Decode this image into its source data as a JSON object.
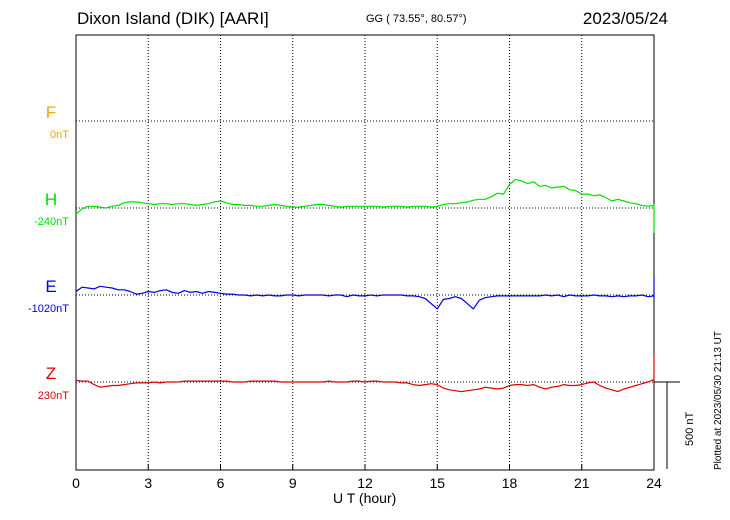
{
  "header": {
    "station": "Dixon Island (DIK)  [AARI]",
    "coords": "GG ( 73.55°,  80.57°)",
    "date": "2023/05/24"
  },
  "footnote": "Plotted at 2023/05/30 21:13 UT",
  "scale_bar_label": "500 nT",
  "colors": {
    "F": "#f0a800",
    "H": "#00e000",
    "E": "#0000e0",
    "Z": "#e00000"
  },
  "chart_data": {
    "type": "line",
    "xlabel": "U T (hour)",
    "xlim": [
      0,
      24
    ],
    "xticks": [
      0,
      3,
      6,
      9,
      12,
      15,
      18,
      21,
      24
    ],
    "x_step_hours": 0.25,
    "panels": [
      {
        "component": "F",
        "baseline": "0nT",
        "values": []
      },
      {
        "component": "H",
        "baseline": "-240nT",
        "values": [
          -35,
          -5,
          10,
          10,
          5,
          0,
          10,
          15,
          30,
          35,
          35,
          30,
          25,
          20,
          25,
          25,
          20,
          25,
          25,
          20,
          15,
          20,
          25,
          35,
          40,
          30,
          20,
          20,
          15,
          15,
          10,
          10,
          15,
          20,
          15,
          10,
          5,
          5,
          10,
          15,
          20,
          20,
          15,
          10,
          5,
          10,
          10,
          10,
          10,
          10,
          10,
          5,
          10,
          10,
          10,
          5,
          10,
          10,
          10,
          5,
          10,
          20,
          25,
          25,
          30,
          35,
          45,
          50,
          50,
          65,
          85,
          80,
          135,
          165,
          155,
          140,
          150,
          125,
          130,
          115,
          120,
          125,
          105,
          100,
          80,
          80,
          70,
          75,
          60,
          40,
          50,
          40,
          30,
          25,
          15,
          10,
          15,
          10,
          20,
          15,
          10,
          5,
          0,
          -10,
          -40,
          -55,
          -45,
          -50,
          -45,
          -60,
          -65,
          -55,
          -45,
          -40,
          -50,
          -60,
          -35,
          -20,
          -15,
          -90,
          -140,
          -130,
          -120,
          -100,
          -80,
          -60,
          -60,
          -50,
          -70,
          -60,
          -40,
          -30,
          -25,
          -50,
          -60,
          -55,
          -55,
          -60,
          -50,
          -50,
          -55,
          -50,
          -50,
          -45,
          -30,
          -20,
          -40,
          -70,
          -50,
          -40,
          -30,
          -20,
          -5
        ]
      },
      {
        "component": "E",
        "baseline": "-1020nT",
        "values": [
          20,
          45,
          40,
          35,
          50,
          45,
          40,
          30,
          30,
          20,
          5,
          10,
          20,
          15,
          25,
          30,
          15,
          10,
          25,
          15,
          20,
          10,
          20,
          15,
          10,
          5,
          5,
          0,
          0,
          -5,
          0,
          -5,
          0,
          -5,
          -5,
          0,
          0,
          -5,
          0,
          0,
          0,
          0,
          -5,
          0,
          0,
          -10,
          0,
          -5,
          -5,
          0,
          -5,
          0,
          0,
          0,
          0,
          -5,
          -5,
          -10,
          -20,
          -50,
          -80,
          -25,
          -20,
          -10,
          -20,
          -50,
          -80,
          -30,
          -15,
          -10,
          -5,
          -5,
          -5,
          -5,
          -5,
          -5,
          -5,
          -5,
          0,
          -5,
          0,
          -10,
          0,
          -5,
          -5,
          -5,
          0,
          -5,
          -5,
          -10,
          -5,
          -10,
          -5,
          -5,
          0,
          -10,
          -5,
          -5,
          -5,
          0,
          -5,
          -10,
          -15,
          -15,
          0,
          10,
          75,
          40,
          0,
          -10,
          -10,
          -10,
          -5,
          -10,
          -5,
          -5,
          -10,
          -5,
          10,
          -10,
          45,
          100,
          90,
          65,
          70,
          55,
          50,
          25,
          50,
          55,
          20,
          35,
          65,
          55,
          45,
          70,
          20,
          10,
          60,
          70,
          65,
          75,
          60,
          15,
          30,
          60,
          45,
          40,
          65,
          50,
          60,
          90,
          50,
          80,
          80,
          60,
          60,
          90,
          80,
          75
        ]
      },
      {
        "component": "Z",
        "baseline": "230nT",
        "values": [
          10,
          5,
          5,
          -15,
          -30,
          -25,
          -20,
          -20,
          -15,
          -10,
          -5,
          -5,
          -5,
          0,
          -5,
          0,
          0,
          0,
          5,
          5,
          5,
          5,
          5,
          5,
          5,
          5,
          0,
          0,
          0,
          5,
          5,
          5,
          5,
          5,
          0,
          0,
          0,
          0,
          0,
          0,
          0,
          0,
          5,
          0,
          0,
          0,
          5,
          5,
          0,
          5,
          5,
          0,
          0,
          0,
          -5,
          -5,
          -15,
          -20,
          -15,
          -10,
          -15,
          -35,
          -45,
          -50,
          -55,
          -50,
          -45,
          -40,
          -30,
          -35,
          -40,
          -35,
          -20,
          -15,
          -15,
          -20,
          -15,
          -30,
          -40,
          -30,
          -25,
          -15,
          -20,
          -20,
          -15,
          -5,
          0,
          -20,
          -35,
          -45,
          -55,
          -40,
          -30,
          -20,
          -10,
          0,
          15,
          25,
          20,
          30,
          40,
          45,
          40,
          50,
          55,
          60,
          85,
          120,
          100,
          130,
          150,
          115,
          110,
          110,
          140,
          100,
          80,
          100,
          90,
          100,
          85,
          80,
          125,
          110,
          120,
          115,
          110,
          130,
          120,
          130,
          135,
          100,
          95,
          115,
          120,
          130,
          150,
          150,
          150,
          120,
          140,
          150,
          140,
          120,
          95,
          90,
          120,
          135,
          130,
          140,
          115,
          80,
          110,
          130,
          140,
          150,
          155,
          150,
          145
        ]
      }
    ]
  }
}
